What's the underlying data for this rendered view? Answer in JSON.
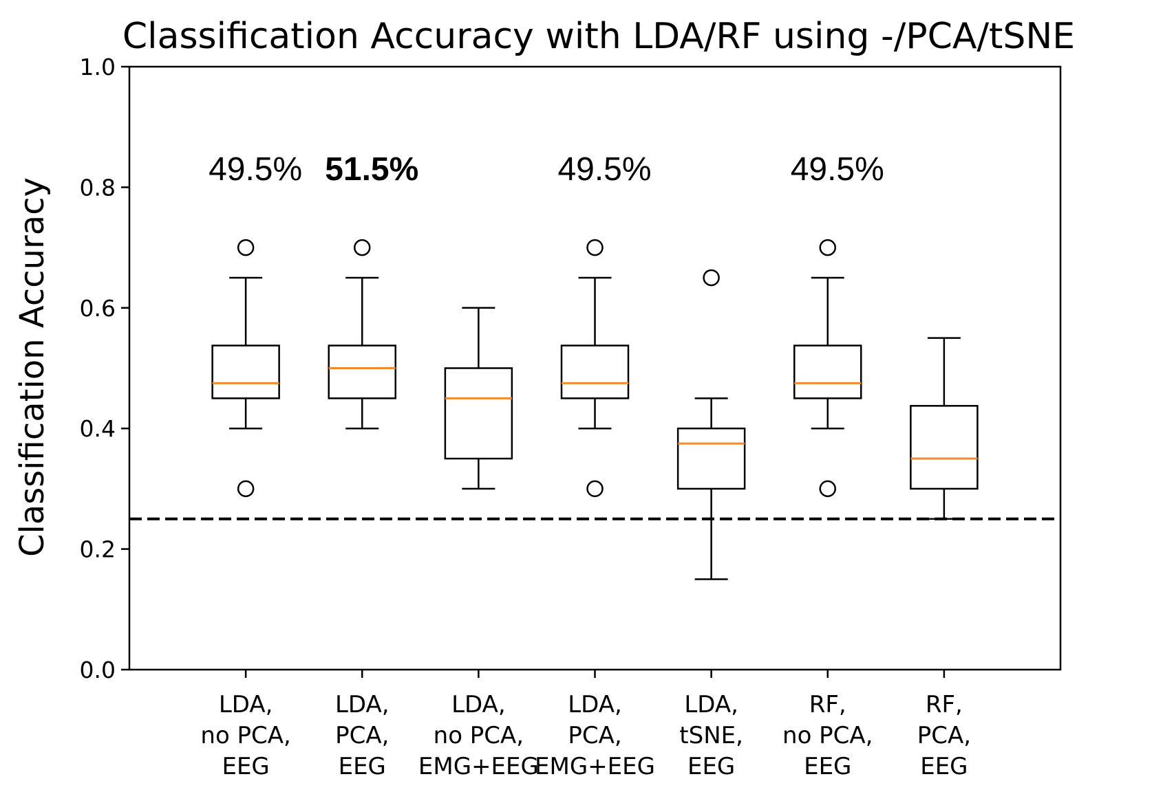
{
  "chart_data": {
    "type": "box",
    "title": "Classification Accuracy with LDA/RF using -/PCA/tSNE",
    "xlabel": "",
    "ylabel": "Classification Accuracy",
    "ylim": [
      0.0,
      1.0
    ],
    "yticks": [
      "0.0",
      "0.2",
      "0.4",
      "0.6",
      "0.8",
      "1.0"
    ],
    "grid": false,
    "chance_line": 0.25,
    "colors": {
      "box": "#000000",
      "median": "#f28a30",
      "chance": "#000000",
      "highlight": "#f05a28"
    },
    "categories": [
      [
        "LDA,",
        "no PCA,",
        "EEG"
      ],
      [
        "LDA,",
        "PCA,",
        "EEG"
      ],
      [
        "LDA,",
        "no PCA,",
        "EMG+EEG"
      ],
      [
        "LDA,",
        "PCA,",
        "EMG+EEG"
      ],
      [
        "LDA,",
        "tSNE,",
        "EEG"
      ],
      [
        "RF,",
        "no PCA,",
        "EEG"
      ],
      [
        "RF,",
        "PCA,",
        "EEG"
      ]
    ],
    "boxes": [
      {
        "whislo": 0.4,
        "q1": 0.45,
        "med": 0.475,
        "q3": 0.5375,
        "whishi": 0.65,
        "fliers": [
          0.7,
          0.3
        ]
      },
      {
        "whislo": 0.4,
        "q1": 0.45,
        "med": 0.5,
        "q3": 0.5375,
        "whishi": 0.65,
        "fliers": [
          0.7
        ]
      },
      {
        "whislo": 0.3,
        "q1": 0.35,
        "med": 0.45,
        "q3": 0.5,
        "whishi": 0.6,
        "fliers": []
      },
      {
        "whislo": 0.4,
        "q1": 0.45,
        "med": 0.475,
        "q3": 0.5375,
        "whishi": 0.65,
        "fliers": [
          0.7,
          0.3
        ]
      },
      {
        "whislo": 0.15,
        "q1": 0.3,
        "med": 0.375,
        "q3": 0.4,
        "whishi": 0.45,
        "fliers": [
          0.65
        ]
      },
      {
        "whislo": 0.4,
        "q1": 0.45,
        "med": 0.475,
        "q3": 0.5375,
        "whishi": 0.65,
        "fliers": [
          0.7,
          0.3
        ]
      },
      {
        "whislo": 0.25,
        "q1": 0.3,
        "med": 0.35,
        "q3": 0.4375,
        "whishi": 0.55,
        "fliers": []
      }
    ],
    "annotations": [
      {
        "text": "49.5%",
        "box": 0,
        "y": 0.83,
        "highlight": false
      },
      {
        "text": "51.5%",
        "box": 1,
        "y": 0.83,
        "highlight": true
      },
      {
        "text": "49.5%",
        "box": 3,
        "y": 0.83,
        "highlight": false
      },
      {
        "text": "49.5%",
        "box": 5,
        "y": 0.83,
        "highlight": false
      }
    ]
  }
}
